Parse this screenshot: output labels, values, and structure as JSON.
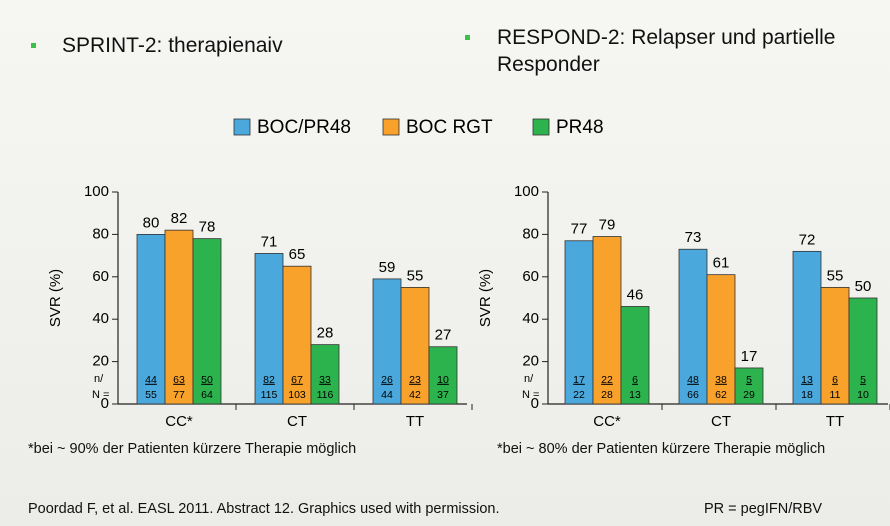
{
  "chart_data": [
    {
      "type": "bar",
      "title": "SPRINT-2: therapienaiv",
      "ylabel": "SVR (%)",
      "categories": [
        "CC*",
        "CT",
        "TT"
      ],
      "series": [
        {
          "name": "BOC/PR48",
          "color": "#4aa8dc",
          "values": [
            80,
            71,
            59
          ],
          "n": [
            44,
            82,
            26
          ],
          "N": [
            55,
            115,
            44
          ]
        },
        {
          "name": "BOC RGT",
          "color": "#f8a22c",
          "values": [
            82,
            65,
            55
          ],
          "n": [
            63,
            67,
            23
          ],
          "N": [
            77,
            103,
            42
          ]
        },
        {
          "name": "PR48",
          "color": "#2db34e",
          "values": [
            78,
            28,
            27
          ],
          "n": [
            50,
            33,
            10
          ],
          "N": [
            64,
            116,
            37
          ]
        }
      ],
      "n_label": "n/",
      "N_label": "N =",
      "ylim": [
        0,
        100
      ],
      "yticks": [
        0,
        20,
        40,
        60,
        80,
        100
      ],
      "note": "*bei ~ 90% der Patienten kürzere Therapie möglich"
    },
    {
      "type": "bar",
      "title": "RESPOND-2: Relapser und partielle Responder",
      "ylabel": "SVR (%)",
      "categories": [
        "CC*",
        "CT",
        "TT"
      ],
      "series": [
        {
          "color": "#4aa8dc",
          "values": [
            77,
            73,
            72
          ],
          "n": [
            17,
            48,
            13
          ],
          "N": [
            22,
            66,
            18
          ]
        },
        {
          "color": "#f8a22c",
          "values": [
            79,
            61,
            55
          ],
          "n": [
            22,
            38,
            6
          ],
          "N": [
            28,
            62,
            11
          ]
        },
        {
          "color": "#2db34e",
          "values": [
            46,
            17,
            50
          ],
          "n": [
            6,
            5,
            5
          ],
          "N": [
            13,
            29,
            10
          ]
        }
      ],
      "n_label": "n/",
      "N_label": "N =",
      "ylim": [
        0,
        100
      ],
      "yticks": [
        0,
        20,
        40,
        60,
        80,
        100
      ],
      "note": "*bei ~ 80% der Patienten kürzere Therapie möglich"
    }
  ],
  "citation": "Poordad F, et al. EASL 2011. Abstract 12. Graphics used with permission.",
  "footnote": "PR = pegIFN/RBV"
}
